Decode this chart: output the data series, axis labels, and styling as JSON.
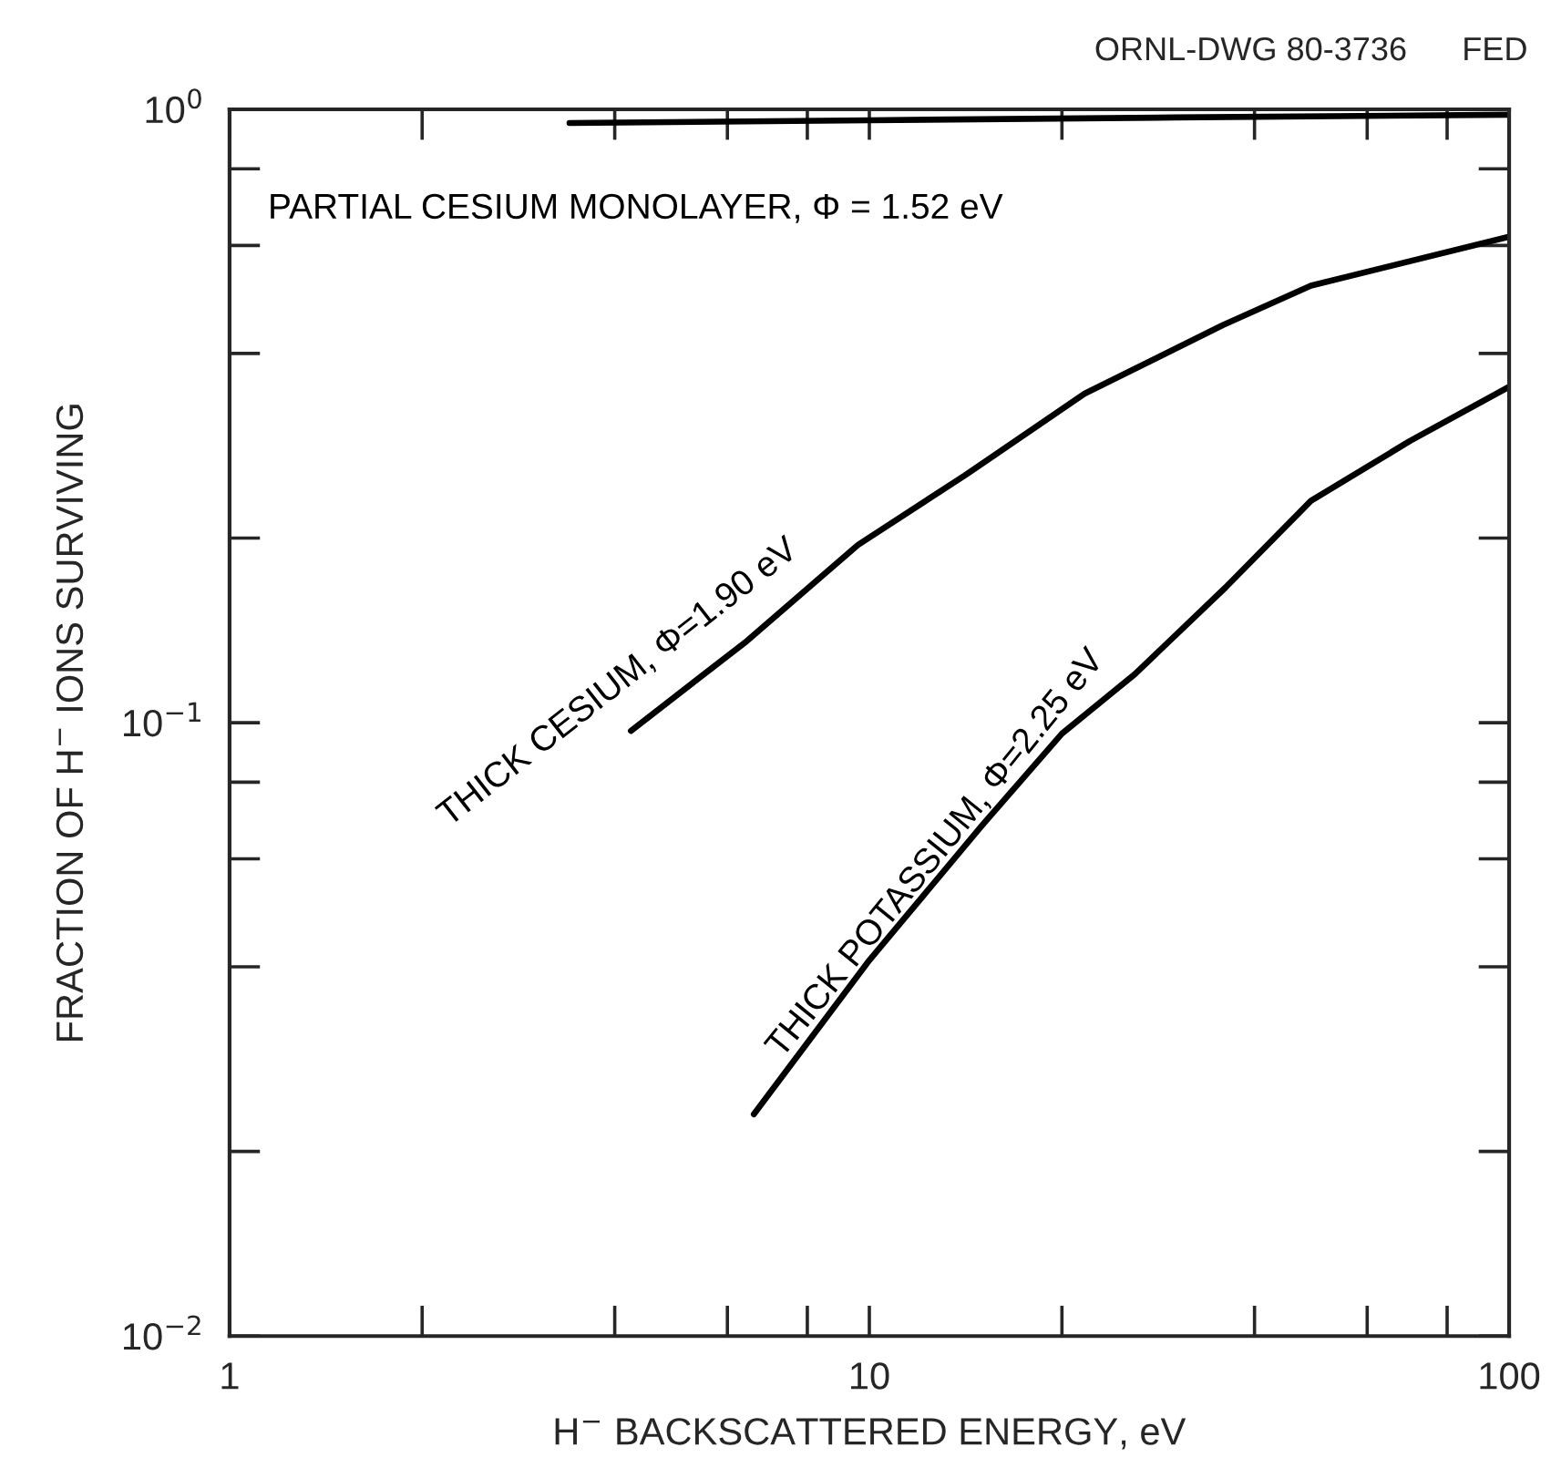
{
  "chart_data": {
    "type": "line",
    "xlabel": "H$^{−}$ BACKSCATTERED ENERGY, eV",
    "ylabel": "FRACTION OF H$^{−}$ IONS SURVIVING",
    "annotations": [
      "ORNL-DWG 80-3736      FED"
    ],
    "log": "xy",
    "xlim": [
      1,
      100
    ],
    "ylim": [
      0.01,
      1
    ],
    "xticks": [
      {
        "value": 1,
        "label": "1"
      },
      {
        "value": 10,
        "label": "10"
      },
      {
        "value": 100,
        "label": "100"
      }
    ],
    "yticks": [
      {
        "value": 0.01,
        "label": "10$^{−2}$"
      },
      {
        "value": 0.1,
        "label": "10$^{−1}$"
      },
      {
        "value": 1,
        "label": "10$^{0}$"
      }
    ],
    "grid": false,
    "legend": false,
    "marker": "none",
    "line_style": "solid",
    "series": [
      {
        "name": "PARTIAL CESIUM MONOLAYER, Φ = 1.52 eV",
        "color": "#000000",
        "x": [
          3.4,
          10,
          30,
          100
        ],
        "values": [
          0.95,
          0.96,
          0.97,
          0.98
        ]
      },
      {
        "name": "THICK CESIUM, Φ=1.90 eV",
        "color": "#000000",
        "x": [
          4.24,
          6.44,
          9.6,
          14.1,
          21.7,
          35.7,
          49,
          100
        ],
        "values": [
          0.097,
          0.136,
          0.195,
          0.253,
          0.344,
          0.445,
          0.516,
          0.62
        ]
      },
      {
        "name": "THICK POTASSIUM, Φ=2.25 eV",
        "color": "#000000",
        "x": [
          6.6,
          10,
          15,
          20,
          26,
          36,
          49,
          70,
          100
        ],
        "values": [
          0.023,
          0.041,
          0.068,
          0.096,
          0.12,
          0.166,
          0.23,
          0.288,
          0.353
        ]
      }
    ]
  }
}
